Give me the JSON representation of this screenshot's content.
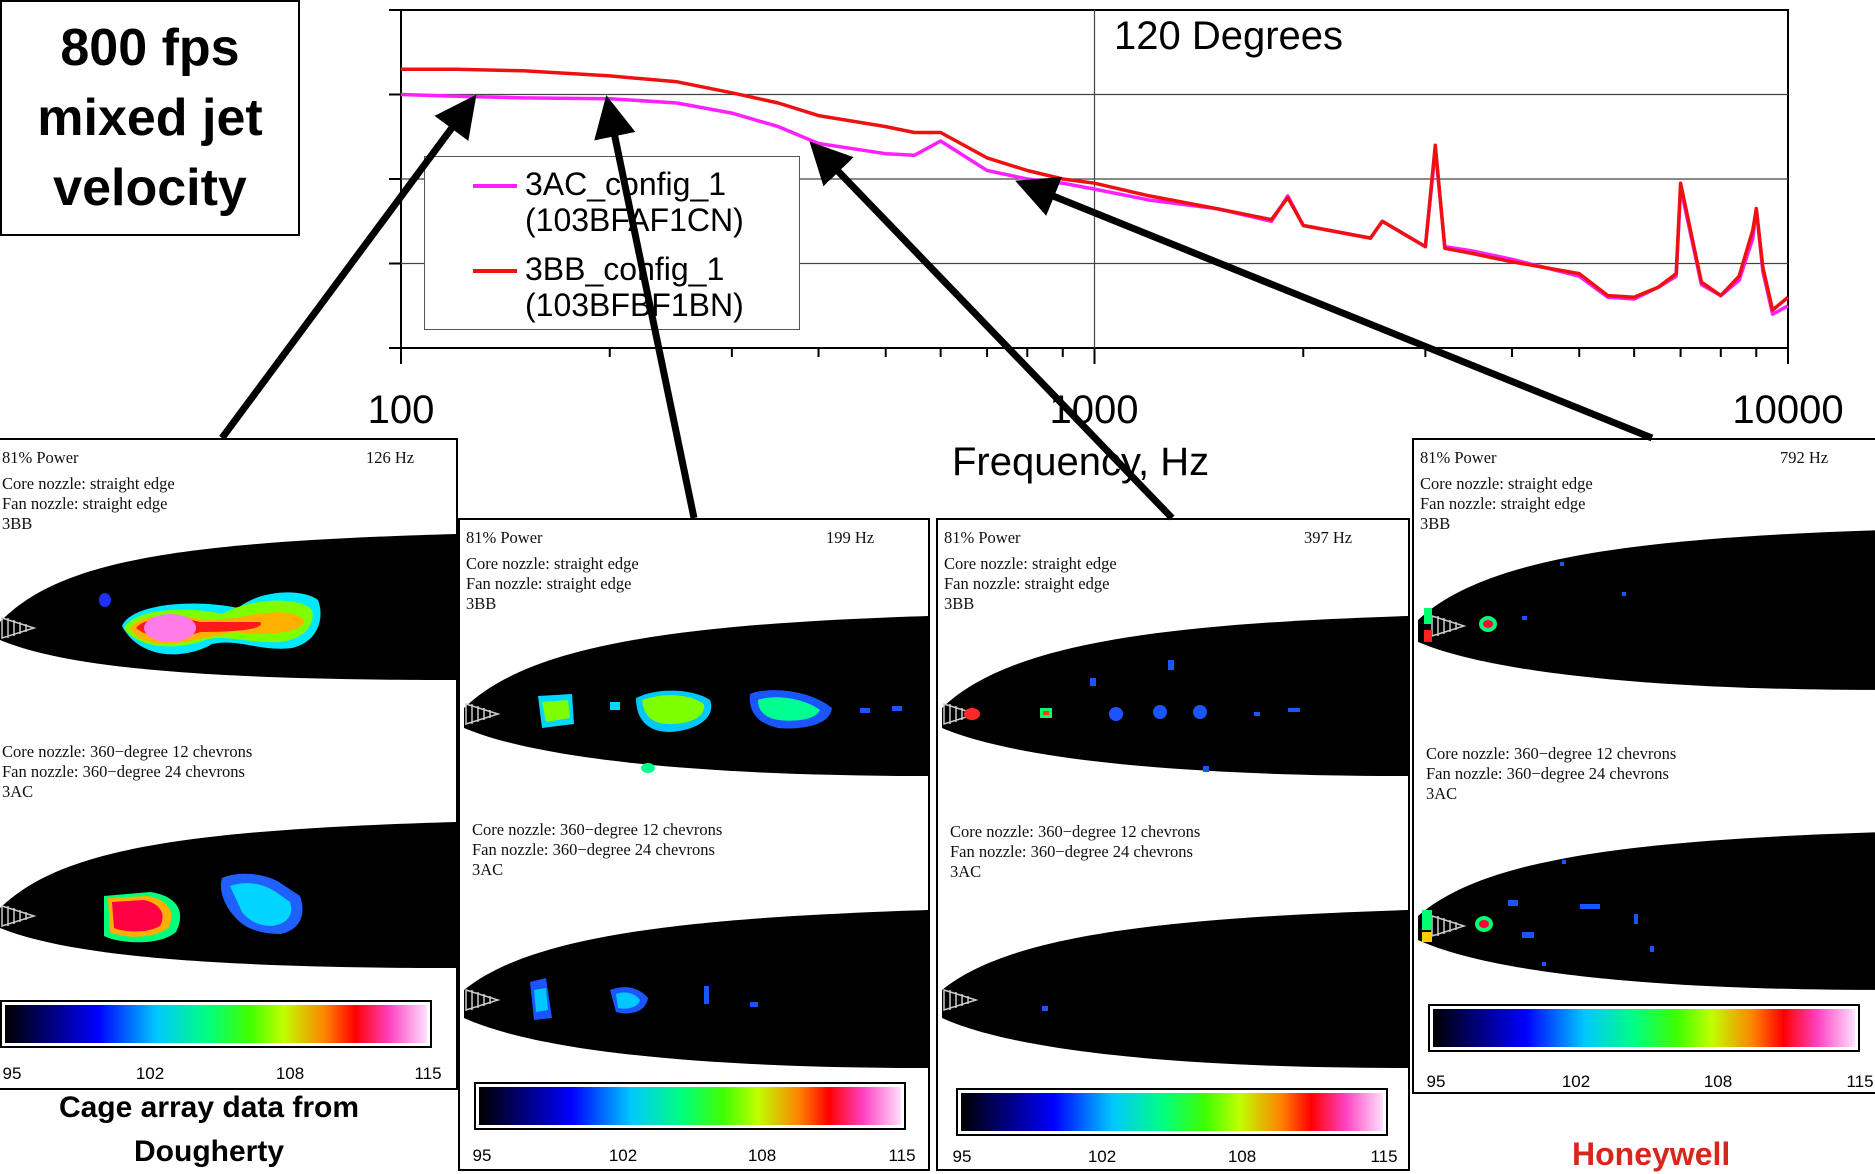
{
  "info_box": {
    "line1": "800 fps",
    "line2": "mixed jet",
    "line3": "velocity"
  },
  "caption": {
    "line1": "Cage array data from",
    "line2": "Dougherty"
  },
  "logo_text": "Honeywell",
  "chart_data": {
    "type": "line",
    "title": "120 Degrees",
    "xlabel": "Frequency, Hz",
    "ylabel": "",
    "x_scale": "log",
    "xlim": [
      100,
      10000
    ],
    "ylim": [
      0,
      4
    ],
    "x_ticks": [
      "100",
      "1000",
      "10000"
    ],
    "grid": true,
    "legend_position": "left",
    "series": [
      {
        "name": "3AC_config_1 (103BFAF1CN)",
        "legend_line1": "3AC_config_1",
        "legend_line2": "(103BFAF1CN)",
        "color": "#ff20ff",
        "x": [
          100,
          120,
          150,
          200,
          250,
          300,
          350,
          400,
          500,
          550,
          600,
          700,
          800,
          900,
          1000,
          1200,
          1500,
          1800,
          1900,
          2000,
          2500,
          2600,
          3000,
          3100,
          3200,
          3500,
          4000,
          5000,
          5500,
          6000,
          6500,
          6900,
          7000,
          7500,
          8000,
          8500,
          8900,
          9000,
          9200,
          9500,
          10000
        ],
        "y": [
          3.0,
          2.98,
          2.96,
          2.95,
          2.9,
          2.78,
          2.62,
          2.42,
          2.3,
          2.28,
          2.45,
          2.1,
          2.0,
          1.95,
          1.88,
          1.75,
          1.65,
          1.5,
          1.8,
          1.45,
          1.3,
          1.5,
          1.2,
          2.35,
          1.2,
          1.15,
          1.05,
          0.85,
          0.6,
          0.58,
          0.72,
          0.85,
          1.9,
          0.75,
          0.62,
          0.8,
          1.3,
          1.65,
          0.9,
          0.4,
          0.5
        ]
      },
      {
        "name": "3BB_config_1 (103BFBF1BN)",
        "legend_line1": "3BB_config_1",
        "legend_line2": "(103BFBF1BN)",
        "color": "#ee1111",
        "x": [
          100,
          120,
          150,
          200,
          250,
          300,
          350,
          400,
          500,
          550,
          600,
          700,
          800,
          900,
          1000,
          1200,
          1500,
          1800,
          1900,
          2000,
          2500,
          2600,
          3000,
          3100,
          3200,
          3500,
          4000,
          5000,
          5500,
          6000,
          6500,
          6900,
          7000,
          7500,
          8000,
          8500,
          8900,
          9000,
          9200,
          9500,
          10000
        ],
        "y": [
          3.3,
          3.3,
          3.28,
          3.22,
          3.15,
          3.02,
          2.9,
          2.75,
          2.62,
          2.55,
          2.55,
          2.25,
          2.1,
          2.0,
          1.95,
          1.8,
          1.65,
          1.52,
          1.78,
          1.45,
          1.3,
          1.5,
          1.2,
          2.4,
          1.18,
          1.12,
          1.02,
          0.88,
          0.62,
          0.6,
          0.72,
          0.88,
          1.95,
          0.78,
          0.62,
          0.85,
          1.4,
          1.65,
          0.95,
          0.45,
          0.6
        ]
      }
    ],
    "annotation_frequencies": [
      126,
      199,
      397,
      792
    ]
  },
  "panels": [
    {
      "power": "81% Power",
      "freq": "126 Hz",
      "bb_line1": "Core nozzle: straight edge",
      "bb_line2": "Fan nozzle: straight edge",
      "bb_line3": "3BB",
      "ac_line1": "Core nozzle: 360−degree 12 chevrons",
      "ac_line2": "Fan nozzle: 360−degree 24 chevrons",
      "ac_line3": "3AC",
      "scale": [
        "95",
        "102",
        "108",
        "115"
      ]
    },
    {
      "power": "81% Power",
      "freq": "199 Hz",
      "bb_line1": "Core nozzle: straight edge",
      "bb_line2": "Fan nozzle: straight edge",
      "bb_line3": "3BB",
      "ac_line1": "Core nozzle: 360−degree 12 chevrons",
      "ac_line2": "Fan nozzle: 360−degree 24 chevrons",
      "ac_line3": "3AC",
      "scale": [
        "95",
        "102",
        "108",
        "115"
      ]
    },
    {
      "power": "81% Power",
      "freq": "397 Hz",
      "bb_line1": "Core nozzle: straight edge",
      "bb_line2": "Fan nozzle: straight edge",
      "bb_line3": "3BB",
      "ac_line1": "Core nozzle: 360−degree 12 chevrons",
      "ac_line2": "Fan nozzle: 360−degree 24 chevrons",
      "ac_line3": "3AC",
      "scale": [
        "95",
        "102",
        "108",
        "115"
      ]
    },
    {
      "power": "81% Power",
      "freq": "792 Hz",
      "bb_line1": "Core nozzle: straight edge",
      "bb_line2": "Fan nozzle: straight edge",
      "bb_line3": "3BB",
      "ac_line1": "Core nozzle: 360−degree 12 chevrons",
      "ac_line2": "Fan nozzle: 360−degree 24 chevrons",
      "ac_line3": "3AC",
      "scale": [
        "95",
        "102",
        "108",
        "115"
      ]
    }
  ]
}
